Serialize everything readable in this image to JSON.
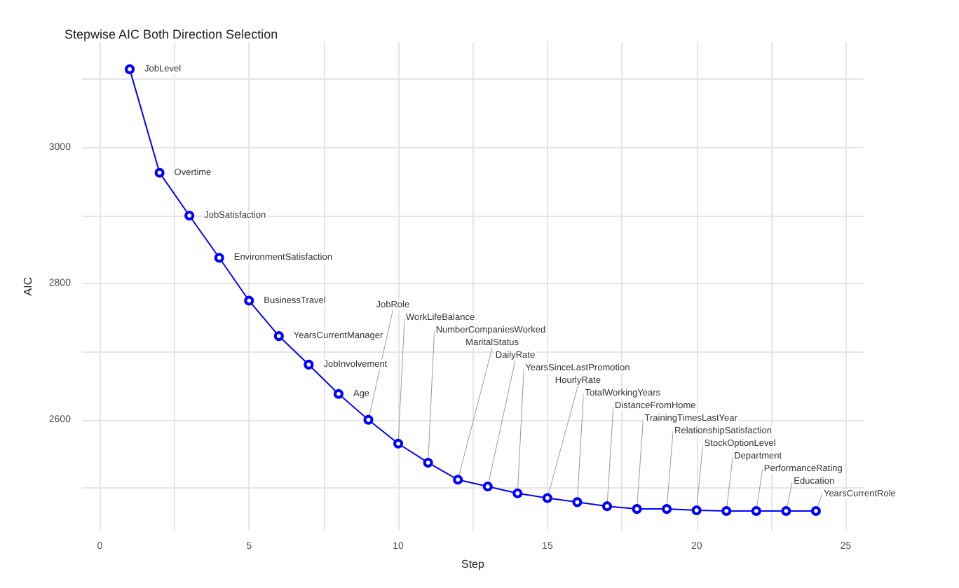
{
  "chart_data": {
    "type": "line",
    "title": "Stepwise AIC Both Direction Selection",
    "xlabel": "Step",
    "ylabel": "AIC",
    "x": [
      1,
      2,
      3,
      4,
      5,
      6,
      7,
      8,
      9,
      10,
      11,
      12,
      13,
      14,
      15,
      16,
      17,
      18,
      19,
      20,
      21,
      22,
      23,
      24
    ],
    "series": [
      {
        "color": "#0000ff",
        "values": [
          3115,
          2963,
          2900,
          2838,
          2775,
          2723,
          2681,
          2638,
          2600,
          2565,
          2537,
          2512,
          2502,
          2492,
          2485,
          2479,
          2473,
          2469,
          2469,
          2467,
          2466,
          2466,
          2466,
          2466
        ],
        "value_labels": [
          "JobLevel",
          "Overtime",
          "JobSatisfaction",
          "EnvironmentSatisfaction",
          "BusinessTravel",
          "YearsCurrentManager",
          "JobInvolvement",
          "Age",
          "JobRole",
          "WorkLifeBalance",
          "NumberCompaniesWorked",
          "MaritalStatus",
          "DailyRate",
          "YearsSinceLastPromotion",
          "HourlyRate",
          "TotalWorkingYears",
          "DistanceFromHome",
          "TrainingTimesLastYear",
          "RelationshipSatisfaction",
          "StockOptionLevel",
          "Department",
          "PerformanceRating",
          "Education",
          "YearsCurrentRole"
        ]
      }
    ],
    "xlim": [
      -0.6,
      25.6
    ],
    "ylim": [
      2437,
      3155
    ],
    "xticks": [
      0,
      {
        "value": 2.5,
        "label": null
      },
      5,
      {
        "value": 7.5,
        "label": null
      },
      10,
      {
        "value": 12.5,
        "label": null
      },
      15,
      {
        "value": 17.5,
        "label": null
      },
      20,
      {
        "value": 22.5,
        "label": null
      },
      25
    ],
    "yticks": [
      {
        "value": 2500,
        "label": null
      },
      2600,
      {
        "value": 2700,
        "label": null
      },
      2800,
      {
        "value": 2900,
        "label": null
      },
      3000,
      {
        "value": 3100,
        "label": null
      }
    ],
    "grid": true,
    "marker": "circle",
    "line_style": "solid"
  }
}
